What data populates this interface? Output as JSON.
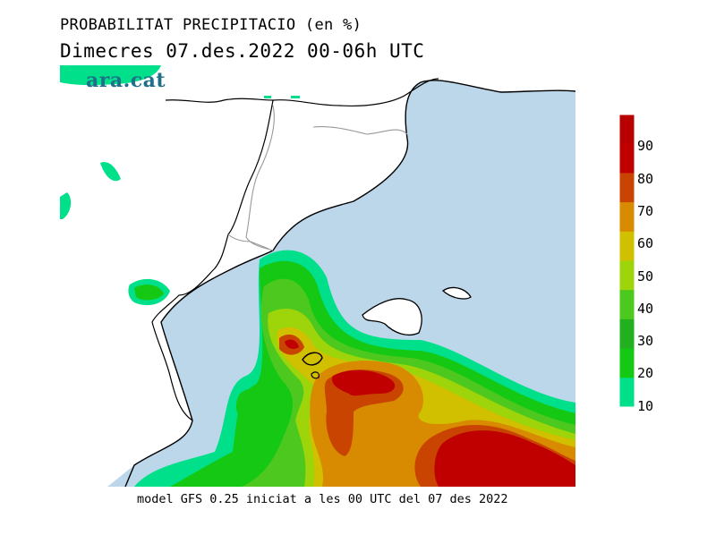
{
  "title": "PROBABILITAT PRECIPITACIO (en %)",
  "subtitle": "Dimecres  07.des.2022 00-06h UTC",
  "brand": "ara.cat",
  "footer": "model GFS 0.25 iniciat a les 00 UTC del 07 des 2022",
  "legend": {
    "levels": [
      "10",
      "20",
      "30",
      "40",
      "50",
      "60",
      "70",
      "80",
      "90"
    ],
    "colors": [
      "#00e08a",
      "#14c814",
      "#22b020",
      "#4cc81e",
      "#9ed40a",
      "#d0c000",
      "#d88a00",
      "#c84400",
      "#c00000",
      "#b80000"
    ]
  },
  "colors": {
    "sea": "#bcd6ea",
    "land": "#ffffff"
  }
}
